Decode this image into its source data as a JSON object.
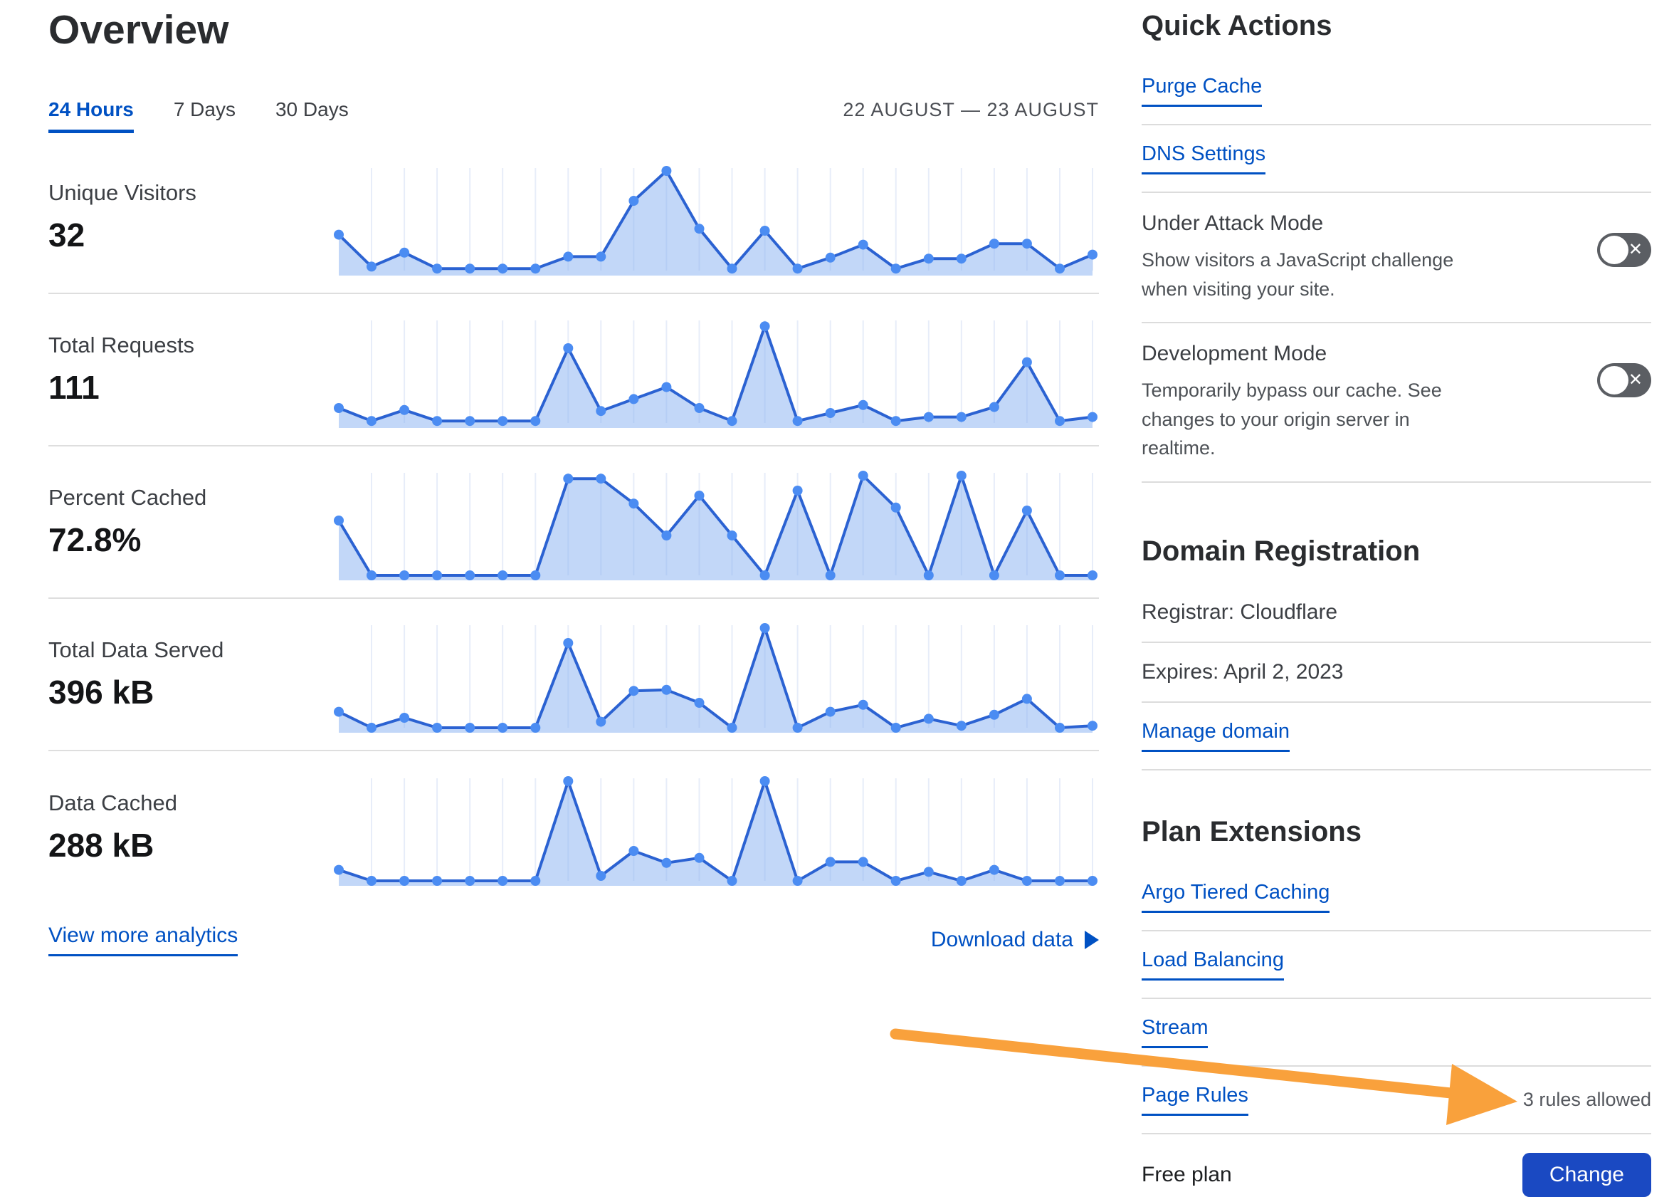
{
  "colors": {
    "link_blue": "#0051c3",
    "chart_line": "#2b62d2",
    "chart_dot": "#4b8cf2",
    "chart_fill": "rgba(133,175,242,0.5)",
    "chart_grid": "#e7edf9",
    "button_bg": "#1a49c2",
    "toggle_bg": "#5b5e63",
    "arrow_orange": "#f9a13c",
    "divider": "#dcdcdc",
    "text_dark": "#2a2c2f"
  },
  "icons": {
    "toggle_off": "✕"
  },
  "header": {
    "title": "Overview",
    "tabs": [
      {
        "label": "24 Hours",
        "active": true
      },
      {
        "label": "7 Days",
        "active": false
      },
      {
        "label": "30 Days",
        "active": false
      }
    ],
    "date_range": "22 AUGUST — 23 AUGUST"
  },
  "chart_data": [
    {
      "type": "area",
      "label": "Unique Visitors",
      "value": "32",
      "x_range": "22 AUGUST — 23 AUGUST",
      "axes_labeled": false,
      "grid": "vertical",
      "values_relative_pct": [
        36,
        4,
        18,
        2,
        2,
        2,
        2,
        14,
        14,
        70,
        100,
        42,
        2,
        40,
        2,
        13,
        26,
        2,
        12,
        12,
        27,
        27,
        2,
        16
      ]
    },
    {
      "type": "area",
      "label": "Total Requests",
      "value": "111",
      "x_range": "22 AUGUST — 23 AUGUST",
      "axes_labeled": false,
      "grid": "vertical",
      "values_relative_pct": [
        15,
        2,
        13,
        2,
        2,
        2,
        2,
        75,
        12,
        24,
        36,
        15,
        2,
        97,
        2,
        10,
        18,
        2,
        6,
        6,
        16,
        61,
        2,
        6
      ]
    },
    {
      "type": "area",
      "label": "Percent Cached",
      "value": "72.8%",
      "x_range": "22 AUGUST — 23 AUGUST",
      "axes_labeled": false,
      "grid": "vertical",
      "values_relative_pct": [
        55,
        0,
        0,
        0,
        0,
        0,
        0,
        97,
        97,
        72,
        40,
        80,
        40,
        0,
        85,
        0,
        100,
        68,
        0,
        100,
        0,
        65,
        0,
        0
      ]
    },
    {
      "type": "area",
      "label": "Total Data Served",
      "value": "396 kB",
      "x_range": "22 AUGUST — 23 AUGUST",
      "axes_labeled": false,
      "grid": "vertical",
      "values_relative_pct": [
        16,
        0,
        10,
        0,
        0,
        0,
        0,
        85,
        6,
        37,
        38,
        25,
        0,
        100,
        0,
        16,
        23,
        0,
        9,
        2,
        13,
        29,
        0,
        2
      ]
    },
    {
      "type": "area",
      "label": "Data Cached",
      "value": "288 kB",
      "x_range": "22 AUGUST — 23 AUGUST",
      "axes_labeled": false,
      "grid": "vertical",
      "values_relative_pct": [
        11,
        0,
        0,
        0,
        0,
        0,
        0,
        100,
        5,
        30,
        18,
        23,
        0,
        100,
        0,
        19,
        19,
        0,
        9,
        0,
        11,
        0,
        0,
        0
      ]
    }
  ],
  "footer_links": {
    "view_more": "View more analytics",
    "download": "Download data"
  },
  "quick_actions": {
    "heading": "Quick Actions",
    "links": [
      "Purge Cache",
      "DNS Settings"
    ],
    "toggles": [
      {
        "title": "Under Attack Mode",
        "description": "Show visitors a JavaScript challenge when visiting your site.",
        "state": "off"
      },
      {
        "title": "Development Mode",
        "description": "Temporarily bypass our cache. See changes to your origin server in realtime.",
        "state": "off"
      }
    ]
  },
  "domain_registration": {
    "heading": "Domain Registration",
    "registrar": "Registrar: Cloudflare",
    "expires": "Expires: April 2, 2023",
    "manage": "Manage domain"
  },
  "plan_extensions": {
    "heading": "Plan Extensions",
    "links": [
      {
        "label": "Argo Tiered Caching",
        "note": ""
      },
      {
        "label": "Load Balancing",
        "note": ""
      },
      {
        "label": "Stream",
        "note": ""
      },
      {
        "label": "Page Rules",
        "note": "3 rules allowed"
      }
    ]
  },
  "plan": {
    "label": "Free plan",
    "button": "Change"
  }
}
